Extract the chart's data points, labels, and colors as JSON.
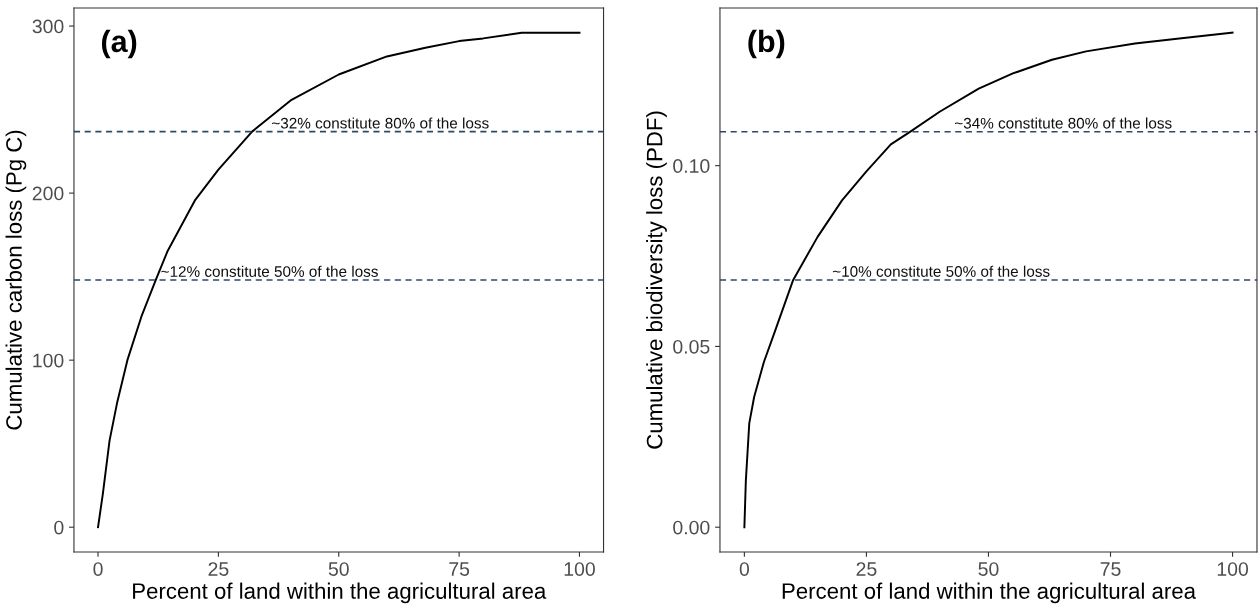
{
  "chart_data": [
    {
      "type": "line",
      "title": "(a)",
      "xlabel": "Percent of land within the agricultural area",
      "ylabel": "Cumulative carbon loss (Pg C)",
      "x": [
        0,
        1,
        2.4,
        4,
        6.1,
        9,
        12,
        14.4,
        20.2,
        25,
        32,
        40,
        50,
        60,
        68,
        75,
        80,
        88,
        100
      ],
      "series": [
        {
          "color": "#000000",
          "values": [
            0,
            20,
            52,
            75,
            100,
            126,
            148,
            165,
            196,
            214,
            236.8,
            255.5,
            271,
            281.8,
            287,
            291,
            292.6,
            296,
            296
          ]
        }
      ],
      "xlim": [
        -5,
        105
      ],
      "xticks": [
        0,
        25,
        50,
        75,
        100
      ],
      "ylim": [
        -14.8,
        310.8
      ],
      "yticks": [
        0,
        100,
        200,
        300
      ],
      "ref_lines": [
        {
          "axis": "y",
          "value": 236.8,
          "color": "#2b4a6b",
          "line_style": "dashed"
        },
        {
          "axis": "y",
          "value": 148,
          "color": "#2b4a6b",
          "line_style": "dashed"
        }
      ],
      "annotations": [
        {
          "text": "~32% constitute 80% of the loss",
          "x": 36,
          "y": 236.8
        },
        {
          "text": "~12% constitute 50% of the loss",
          "x": 13,
          "y": 148
        }
      ],
      "grid": false,
      "line_style": "solid"
    },
    {
      "type": "line",
      "title": "(b)",
      "xlabel": "Percent of land within the agricultural area",
      "ylabel": "Cumulative biodiversity loss (PDF)",
      "x": [
        0,
        0.3,
        1,
        2,
        4,
        6,
        10,
        15,
        20,
        25,
        30,
        34,
        40,
        48,
        55,
        63,
        70,
        80,
        90,
        100
      ],
      "series": [
        {
          "color": "#000000",
          "values": [
            0,
            0.0128,
            0.0287,
            0.036,
            0.0457,
            0.0532,
            0.0684,
            0.0803,
            0.0904,
            0.0984,
            0.1059,
            0.1094,
            0.1149,
            0.1213,
            0.1255,
            0.1293,
            0.1316,
            0.1338,
            0.1353,
            0.1368
          ]
        }
      ],
      "xlim": [
        -5,
        105
      ],
      "xticks": [
        0,
        25,
        50,
        75,
        100
      ],
      "ylim": [
        -0.00684,
        0.1436
      ],
      "yticks": [
        {
          "value": 0,
          "label": "0.00"
        },
        {
          "value": 0.05,
          "label": "0.05"
        },
        {
          "value": 0.1,
          "label": "0.10"
        }
      ],
      "ref_lines": [
        {
          "axis": "y",
          "value": 0.1094,
          "color": "#2b4a6b",
          "line_style": "dashed"
        },
        {
          "axis": "y",
          "value": 0.0684,
          "color": "#2b4a6b",
          "line_style": "dashed"
        }
      ],
      "annotations": [
        {
          "text": "~34% constitute 80% of the loss",
          "x": 43,
          "y": 0.1094
        },
        {
          "text": "~10% constitute 50% of the loss",
          "x": 18,
          "y": 0.0684
        }
      ],
      "grid": false,
      "line_style": "solid"
    }
  ]
}
